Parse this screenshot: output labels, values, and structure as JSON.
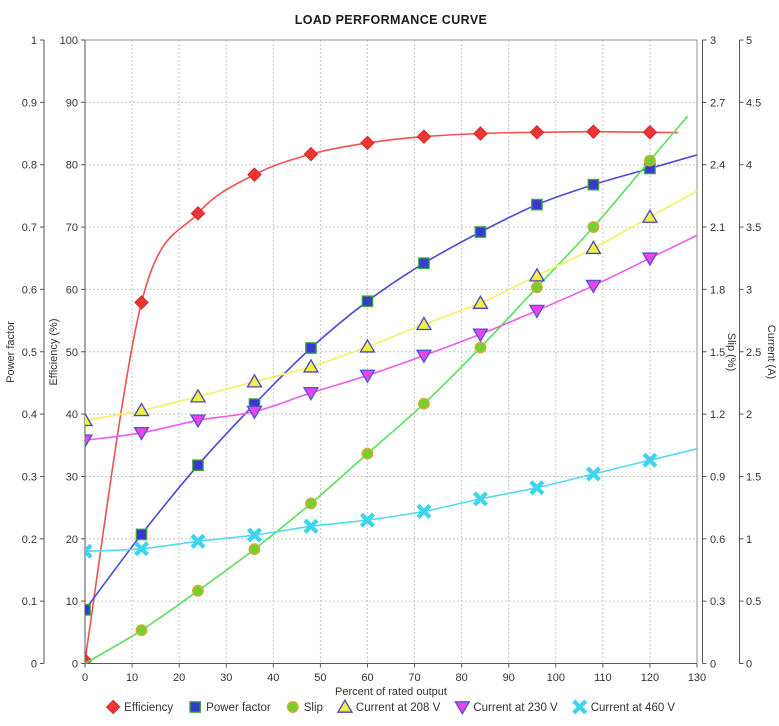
{
  "chart_data": {
    "type": "line",
    "title": "LOAD PERFORMANCE CURVE",
    "xlabel": "Percent of rated output",
    "grid": true,
    "legend_position": "bottom",
    "x_axis": {
      "range": [
        0,
        130
      ],
      "tick_labels": [
        "0",
        "10",
        "20",
        "30",
        "40",
        "50",
        "60",
        "70",
        "80",
        "90",
        "100",
        "110",
        "120",
        "130"
      ]
    },
    "axes": [
      {
        "id": "power_factor",
        "label": "Power factor",
        "side": "left",
        "range": [
          0,
          1
        ],
        "tick_labels": [
          "0",
          "0.1",
          "0.2",
          "0.3",
          "0.4",
          "0.5",
          "0.6",
          "0.7",
          "0.8",
          "0.9",
          "1"
        ]
      },
      {
        "id": "efficiency",
        "label": "Efficiency (%)",
        "side": "left",
        "range": [
          0,
          100
        ],
        "tick_labels": [
          "0",
          "10",
          "20",
          "30",
          "40",
          "50",
          "60",
          "70",
          "80",
          "90",
          "100"
        ]
      },
      {
        "id": "slip",
        "label": "Slip (%)",
        "side": "right",
        "range": [
          0,
          3
        ],
        "tick_labels": [
          "0",
          "0.3",
          "0.6",
          "0.9",
          "1.2",
          "1.5",
          "1.8",
          "2.1",
          "2.4",
          "2.7",
          "3"
        ]
      },
      {
        "id": "current",
        "label": "Current (A)",
        "side": "right",
        "range": [
          0,
          5
        ],
        "tick_labels": [
          "0",
          "0.5",
          "1",
          "1.5",
          "2",
          "2.5",
          "3",
          "3.5",
          "4",
          "4.5",
          "5"
        ]
      }
    ],
    "x_values": [
      0,
      12,
      24,
      36,
      48,
      60,
      72,
      84,
      96,
      108,
      120
    ],
    "series": [
      {
        "name": "Efficiency",
        "axis": "efficiency",
        "marker": "diamond",
        "line_color": "#f25151",
        "marker_fill": "#ee3434",
        "marker_stroke": "#cf2b2b",
        "values": [
          0.5,
          57.9,
          72.2,
          78.4,
          81.7,
          83.5,
          84.5,
          85.0,
          85.2,
          85.3,
          85.2
        ],
        "extend_to": 126
      },
      {
        "name": "Power factor",
        "axis": "power_factor",
        "marker": "square",
        "line_color": "#4a4ada",
        "marker_fill": "#3939cf",
        "marker_stroke": "#3ba43b",
        "values": [
          0.086,
          0.207,
          0.318,
          0.416,
          0.506,
          0.581,
          0.642,
          0.692,
          0.736,
          0.768,
          0.794
        ],
        "extend_to": 130
      },
      {
        "name": "Slip",
        "axis": "slip",
        "marker": "circle",
        "line_color": "#58e058",
        "marker_fill": "#6fd32f",
        "marker_stroke": "#d9a73a",
        "values": [
          0,
          0.16,
          0.35,
          0.55,
          0.77,
          1.01,
          1.25,
          1.52,
          1.81,
          2.1,
          2.42
        ],
        "marker_skip_first": true,
        "extend_to": 128
      },
      {
        "name": "Current at 208 V",
        "axis": "current",
        "marker": "triangle-up",
        "line_color": "#f4f160",
        "marker_fill": "#f3ef3f",
        "marker_stroke": "#4444cc",
        "values": [
          1.95,
          2.03,
          2.14,
          2.26,
          2.38,
          2.54,
          2.72,
          2.89,
          3.11,
          3.33,
          3.58
        ],
        "extend_to": 130
      },
      {
        "name": "Current at 230 V",
        "axis": "current",
        "marker": "triangle-down",
        "line_color": "#ef59ef",
        "marker_fill": "#e943e9",
        "marker_stroke": "#4f55cf",
        "values": [
          1.79,
          1.85,
          1.95,
          2.02,
          2.17,
          2.31,
          2.47,
          2.64,
          2.83,
          3.03,
          3.25
        ],
        "extend_to": 130
      },
      {
        "name": "Current at 460 V",
        "axis": "current",
        "marker": "x",
        "line_color": "#50dbf2",
        "marker_fill": "#3ed4ee",
        "marker_stroke": "#3ed4ee",
        "values": [
          0.9,
          0.92,
          0.98,
          1.03,
          1.1,
          1.15,
          1.22,
          1.32,
          1.41,
          1.52,
          1.63
        ],
        "extend_to": 130
      }
    ]
  },
  "style": {
    "background": "#ffffff",
    "grid_color": "#c6c6c6",
    "border_color": "#909090",
    "axis_color": "#555555",
    "text_color": "#333333",
    "title_color": "#1a1a1a"
  }
}
